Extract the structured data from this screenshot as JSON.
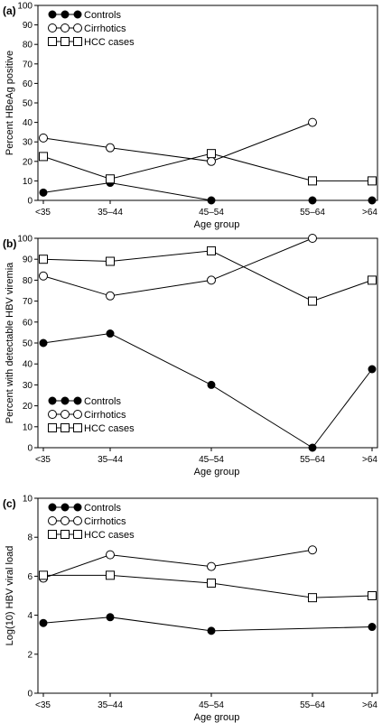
{
  "chart_data": [
    {
      "panel_label": "(a)",
      "type": "line",
      "xlabel": "Age group",
      "ylabel": "Percent HBeAg positive",
      "categories": [
        "<35",
        "35–44",
        "45–54",
        "55–64",
        ">64"
      ],
      "ylim": [
        0,
        100
      ],
      "yticks": [
        "0",
        "10",
        "20",
        "30",
        "40",
        "50",
        "60",
        "70",
        "80",
        "90",
        "100"
      ],
      "legend_position": "top-left",
      "series": [
        {
          "name": "Controls",
          "marker": "filled-circle",
          "values": [
            4,
            9,
            0,
            0,
            0
          ]
        },
        {
          "name": "Cirrhotics",
          "marker": "open-circle",
          "values": [
            32,
            27,
            20,
            40,
            null
          ]
        },
        {
          "name": "HCC cases",
          "marker": "open-square",
          "values": [
            22.5,
            11,
            24,
            10,
            10
          ]
        }
      ]
    },
    {
      "panel_label": "(b)",
      "type": "line",
      "xlabel": "Age group",
      "ylabel": "Percent with detectable HBV viremia",
      "categories": [
        "<35",
        "35–44",
        "45–54",
        "55–64",
        ">64"
      ],
      "ylim": [
        0,
        100
      ],
      "yticks": [
        "0",
        "10",
        "20",
        "30",
        "40",
        "50",
        "60",
        "70",
        "80",
        "90",
        "100"
      ],
      "legend_position": "bottom-left",
      "series": [
        {
          "name": "Controls",
          "marker": "filled-circle",
          "values": [
            50,
            54.5,
            30,
            0,
            37.5
          ]
        },
        {
          "name": "Cirrhotics",
          "marker": "open-circle",
          "values": [
            82,
            72.5,
            80,
            100,
            null
          ]
        },
        {
          "name": "HCC cases",
          "marker": "open-square",
          "values": [
            90,
            89,
            94,
            70,
            80
          ]
        }
      ]
    },
    {
      "panel_label": "(c)",
      "type": "line",
      "xlabel": "Age group",
      "ylabel": "Log(10) HBV viral load",
      "categories": [
        "<35",
        "35–44",
        "45–54",
        "55–64",
        ">64"
      ],
      "ylim": [
        0,
        10
      ],
      "yticks": [
        "0",
        "2",
        "4",
        "6",
        "8",
        "10"
      ],
      "legend_position": "top-left",
      "series": [
        {
          "name": "Controls",
          "marker": "filled-circle",
          "values": [
            3.6,
            3.9,
            3.2,
            null,
            3.4
          ]
        },
        {
          "name": "Cirrhotics",
          "marker": "open-circle",
          "values": [
            5.9,
            7.1,
            6.5,
            7.35,
            null
          ]
        },
        {
          "name": "HCC cases",
          "marker": "open-square",
          "values": [
            6.05,
            6.05,
            5.65,
            4.9,
            5.0
          ]
        }
      ]
    }
  ]
}
